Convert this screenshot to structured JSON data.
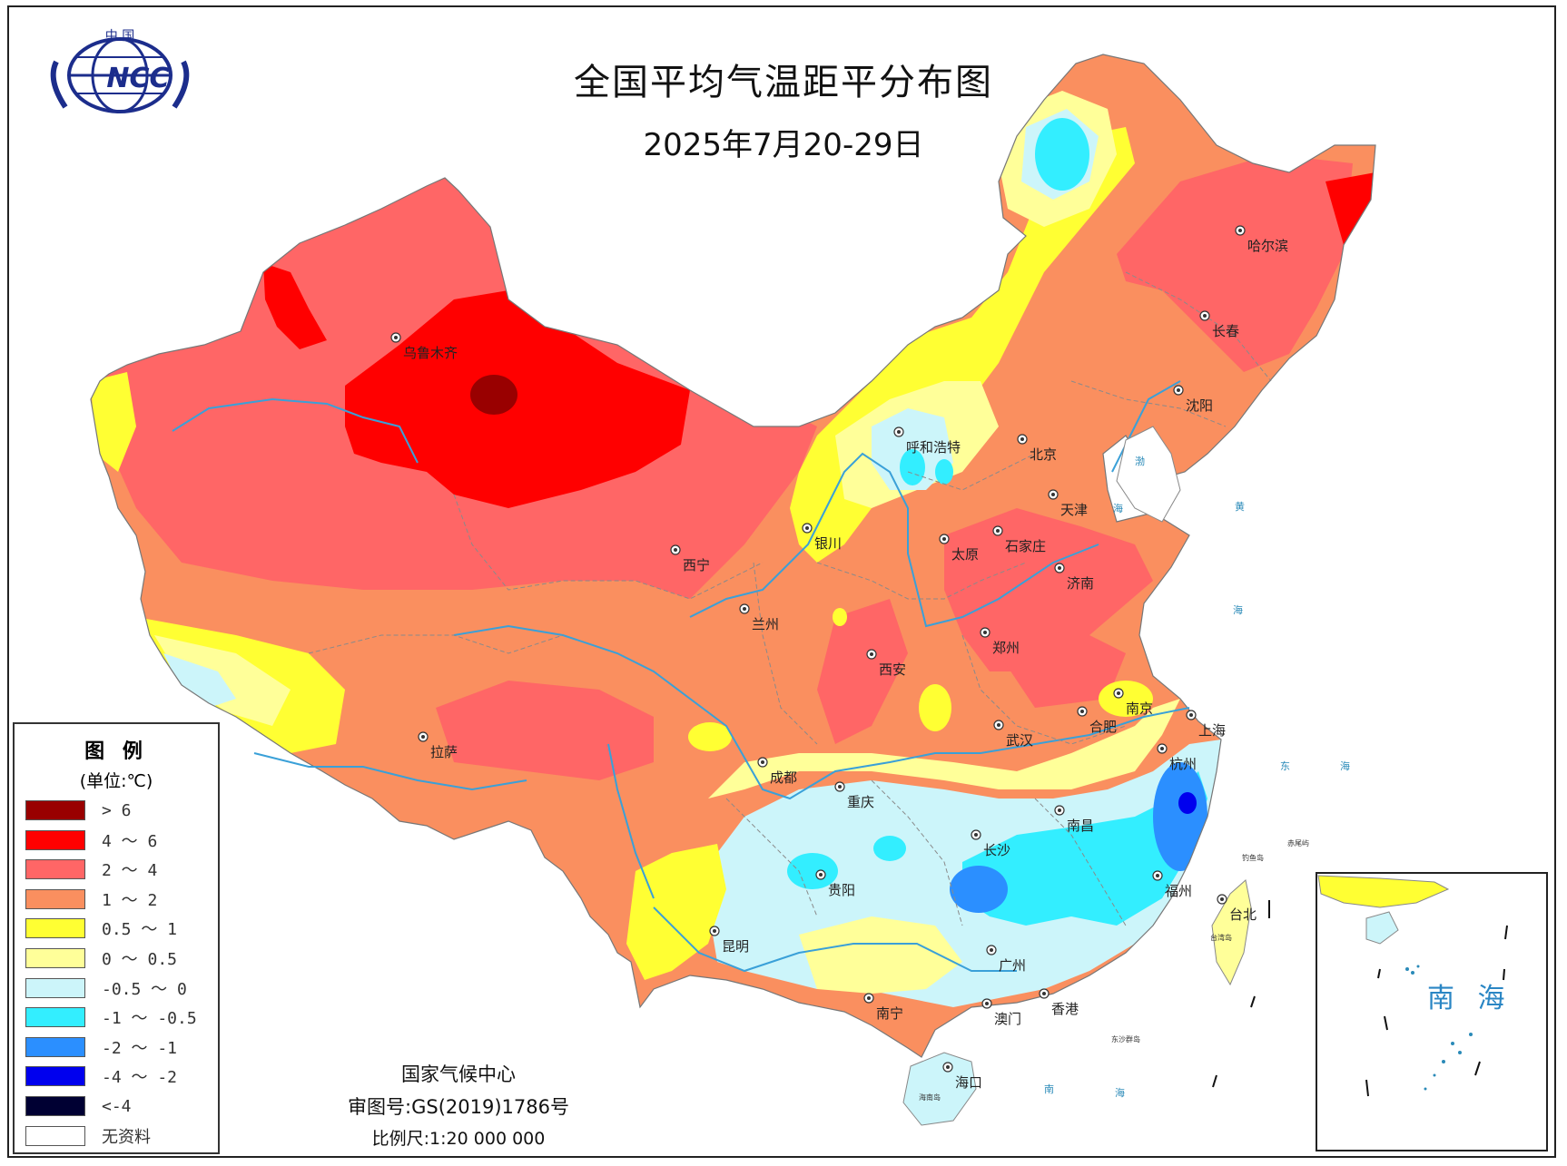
{
  "header": {
    "title": "全国平均气温距平分布图",
    "date_range": "2025年7月20-29日"
  },
  "logo": {
    "top_text": "中 国",
    "acronym": "NCC",
    "icon": "ncc-globe-logo-icon"
  },
  "legend": {
    "title": "图 例",
    "unit": "(单位:℃)",
    "items": [
      {
        "label": "> 6",
        "color": "#990000"
      },
      {
        "label": "4 ～ 6",
        "color": "#ff0000"
      },
      {
        "label": "2 ～ 4",
        "color": "#ff6666"
      },
      {
        "label": "1 ～ 2",
        "color": "#fa8f5f"
      },
      {
        "label": "0.5 ～ 1",
        "color": "#ffff33"
      },
      {
        "label": "0 ～ 0.5",
        "color": "#ffff99"
      },
      {
        "label": "-0.5 ～ 0",
        "color": "#ccf5fa"
      },
      {
        "label": "-1 ～ -0.5",
        "color": "#33eeff"
      },
      {
        "label": "-2 ～ -1",
        "color": "#2b8fff"
      },
      {
        "label": "-4 ～ -2",
        "color": "#0000ee"
      },
      {
        "label": "<-4",
        "color": "#000033"
      },
      {
        "label": "无资料",
        "color": "#ffffff"
      }
    ]
  },
  "cities": [
    {
      "name": "乌鲁木齐"
    },
    {
      "name": "拉萨"
    },
    {
      "name": "西宁"
    },
    {
      "name": "兰州"
    },
    {
      "name": "银川"
    },
    {
      "name": "呼和浩特"
    },
    {
      "name": "北京"
    },
    {
      "name": "天津"
    },
    {
      "name": "石家庄"
    },
    {
      "name": "太原"
    },
    {
      "name": "济南"
    },
    {
      "name": "郑州"
    },
    {
      "name": "西安"
    },
    {
      "name": "成都"
    },
    {
      "name": "重庆"
    },
    {
      "name": "武汉"
    },
    {
      "name": "合肥"
    },
    {
      "name": "南京"
    },
    {
      "name": "上海"
    },
    {
      "name": "杭州"
    },
    {
      "name": "南昌"
    },
    {
      "name": "长沙"
    },
    {
      "name": "贵阳"
    },
    {
      "name": "昆明"
    },
    {
      "name": "南宁"
    },
    {
      "name": "广州"
    },
    {
      "name": "澳门"
    },
    {
      "name": "香港"
    },
    {
      "name": "福州"
    },
    {
      "name": "台北"
    },
    {
      "name": "海口"
    },
    {
      "name": "哈尔滨"
    },
    {
      "name": "长春"
    },
    {
      "name": "沈阳"
    }
  ],
  "sea_labels": {
    "bohai": "渤",
    "bohai2": "海",
    "huanghai": "黄",
    "huanghai2": "海",
    "donghai": "东",
    "donghai2": "海",
    "nanhai": "南",
    "nanhai2": "海",
    "taiwan_island": "台湾岛",
    "hainan_island": "海南岛",
    "diaoyu": "钓鱼岛",
    "chiwei": "赤尾屿",
    "dongsha": "东沙群岛"
  },
  "inset": {
    "title": "南 海"
  },
  "footer": {
    "agency": "国家气候中心",
    "review_no": "审图号:GS(2019)1786号",
    "scale": "比例尺:1:20 000 000"
  },
  "colors": {
    "river": "#3aa0d8",
    "border": "#999999"
  }
}
